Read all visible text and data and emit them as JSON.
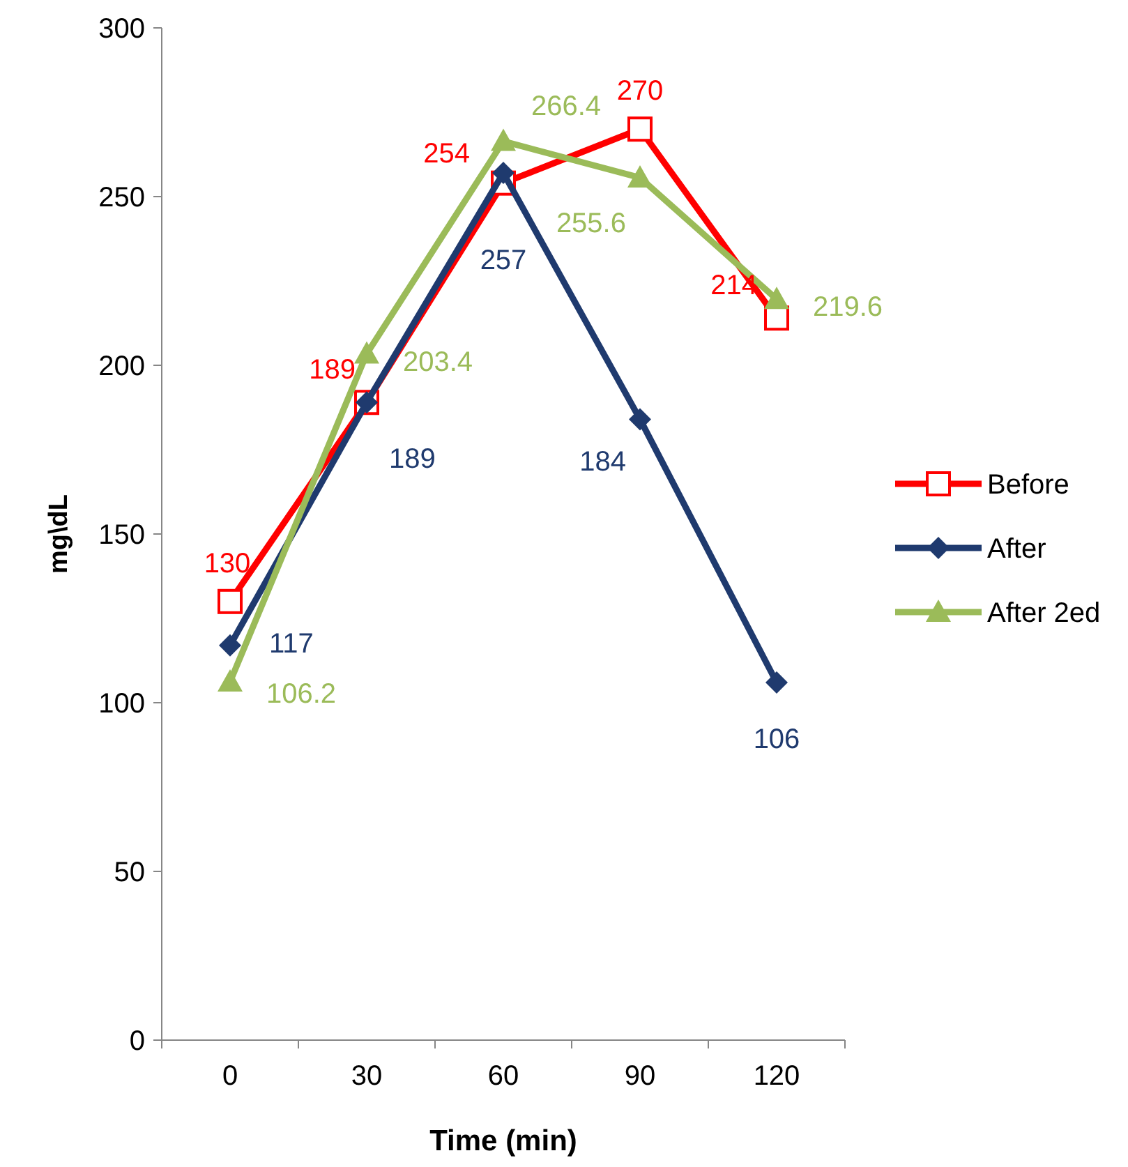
{
  "chart_data": {
    "type": "line",
    "xlabel": "Time (min)",
    "ylabel": "mg\\dL",
    "categories": [
      "0",
      "30",
      "60",
      "90",
      "120"
    ],
    "ylim": [
      0,
      300
    ],
    "yticks": [
      0,
      50,
      100,
      150,
      200,
      250,
      300
    ],
    "grid": false,
    "legend": "right",
    "data_labels": true,
    "line_style": "solid",
    "series": [
      {
        "name": "Before",
        "color": "#ff0000",
        "marker": "square",
        "values": [
          130,
          189,
          254,
          270,
          214
        ]
      },
      {
        "name": "After",
        "color": "#1f3a6e",
        "marker": "diamond",
        "values": [
          117,
          189,
          257,
          184,
          106
        ]
      },
      {
        "name": "After 2ed",
        "color": "#9bbb59",
        "marker": "triangle",
        "values": [
          106.2,
          203.4,
          266.4,
          255.6,
          219.6
        ]
      }
    ]
  }
}
